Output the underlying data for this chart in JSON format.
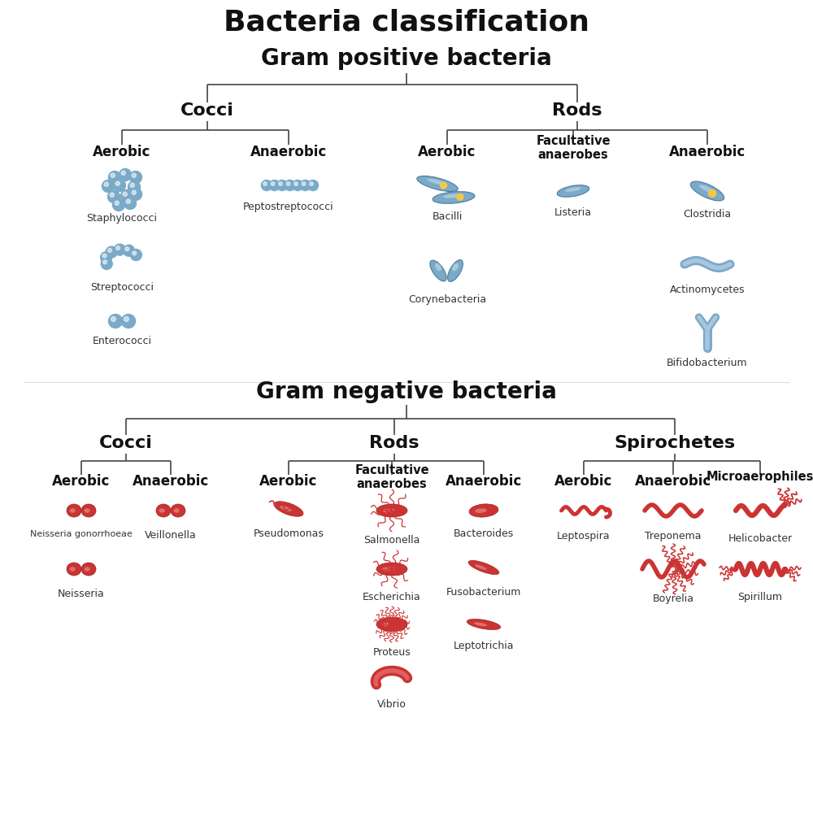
{
  "title": "Bacteria classification",
  "bg_color": "#ffffff",
  "line_color": "#444444",
  "blue_color": "#6B9DC2",
  "blue_dark": "#4A7BA0",
  "blue_light": "#A8C5DD",
  "blue_mid": "#7AAAC8",
  "red_color": "#CC3333",
  "red_dark": "#992222",
  "red_light": "#E06060",
  "yellow_color": "#F5C842",
  "title_fontsize": 26,
  "section_fontsize": 20,
  "category_fontsize": 16,
  "sub_fontsize": 12,
  "label_fontsize": 9,
  "gram_positive_label": "Gram positive bacteria",
  "gram_negative_label": "Gram negative bacteria",
  "cocci": "Cocci",
  "rods": "Rods",
  "spirochetes": "Spirochetes",
  "aerobic": "Aerobic",
  "anaerobic": "Anaerobic",
  "facultative": "Facultative\nanaerobes",
  "microaerophiles": "Microaerophiles"
}
